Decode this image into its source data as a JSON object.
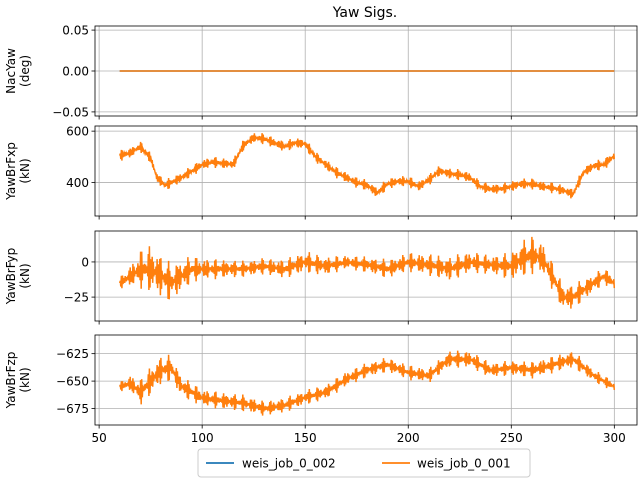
{
  "figure": {
    "title": "Yaw Sigs.",
    "legend_placement": "bottom-center",
    "legend": [
      {
        "label": "weis_job_0_002",
        "color": "#1f77b4"
      },
      {
        "label": "weis_job_0_001",
        "color": "#ff7f0e"
      }
    ]
  },
  "chart_data": [
    {
      "type": "line",
      "ylabel": [
        "NacYaw",
        "(deg)"
      ],
      "xlim": [
        48,
        311
      ],
      "ylim": [
        -0.055,
        0.055
      ],
      "yticks": [
        -0.05,
        0.0,
        0.05
      ],
      "ytick_labels": [
        "−0.05",
        "0.00",
        "0.05"
      ],
      "xticks": [
        50,
        100,
        150,
        200,
        250,
        300
      ],
      "xtick_labels": [],
      "grid": true,
      "series": [
        {
          "name": "weis_job_0_002",
          "color": "#1f77b4",
          "x_start": 60,
          "x_end": 300,
          "x": [
            60,
            300
          ],
          "y": [
            0,
            0
          ]
        },
        {
          "name": "weis_job_0_001",
          "color": "#ff7f0e",
          "x_start": 60,
          "x_end": 300,
          "x": [
            60,
            300
          ],
          "y": [
            0,
            0
          ]
        }
      ]
    },
    {
      "type": "line",
      "ylabel": [
        "YawBrFxp",
        "(kN)"
      ],
      "xlim": [
        48,
        311
      ],
      "ylim": [
        270,
        620
      ],
      "yticks": [
        400,
        600
      ],
      "ytick_labels": [
        "400",
        "600"
      ],
      "xticks": [
        50,
        100,
        150,
        200,
        250,
        300
      ],
      "xtick_labels": [],
      "grid": true,
      "series": [
        {
          "name": "weis_job_0_001",
          "color": "#ff7f0e",
          "x_start": 60,
          "x_end": 300,
          "oscillation_amplitude": 22,
          "oscillation_period": 1.2,
          "x": [
            60,
            65,
            70,
            75,
            78,
            82,
            85,
            90,
            95,
            100,
            105,
            110,
            115,
            120,
            125,
            130,
            135,
            140,
            145,
            150,
            155,
            160,
            165,
            170,
            175,
            180,
            185,
            190,
            195,
            200,
            205,
            210,
            215,
            220,
            225,
            230,
            235,
            240,
            245,
            250,
            255,
            260,
            265,
            270,
            275,
            280,
            285,
            290,
            295,
            300
          ],
          "y": [
            505,
            515,
            540,
            495,
            420,
            390,
            400,
            420,
            445,
            470,
            480,
            475,
            470,
            545,
            575,
            570,
            555,
            540,
            555,
            550,
            500,
            470,
            440,
            420,
            400,
            390,
            360,
            395,
            405,
            405,
            385,
            410,
            445,
            435,
            430,
            420,
            385,
            375,
            375,
            385,
            395,
            395,
            385,
            380,
            370,
            355,
            440,
            465,
            470,
            505
          ]
        }
      ]
    },
    {
      "type": "line",
      "ylabel": [
        "YawBrFyp",
        "(kN)"
      ],
      "xlim": [
        48,
        311
      ],
      "ylim": [
        -42,
        22
      ],
      "yticks": [
        -25,
        0
      ],
      "ytick_labels": [
        "−25",
        "0"
      ],
      "xticks": [
        50,
        100,
        150,
        200,
        250,
        300
      ],
      "xtick_labels": [],
      "grid": true,
      "series": [
        {
          "name": "weis_job_0_001",
          "color": "#ff7f0e",
          "x_start": 60,
          "x_end": 300,
          "x": [
            60,
            65,
            70,
            75,
            80,
            85,
            90,
            95,
            100,
            110,
            120,
            130,
            140,
            150,
            160,
            170,
            180,
            190,
            200,
            210,
            220,
            230,
            240,
            250,
            255,
            260,
            265,
            270,
            275,
            280,
            285,
            290,
            295,
            300
          ],
          "y": [
            -15,
            -10,
            -5,
            -5,
            -10,
            -15,
            -10,
            -5,
            -5,
            -5,
            -5,
            -3,
            -5,
            0,
            -3,
            0,
            -2,
            -5,
            0,
            -2,
            -5,
            0,
            -2,
            -3,
            2,
            5,
            3,
            -10,
            -25,
            -25,
            -20,
            -15,
            -10,
            -15
          ],
          "amplitude": [
            4,
            8,
            14,
            18,
            16,
            14,
            12,
            10,
            8,
            7,
            6,
            6,
            7,
            8,
            7,
            5,
            6,
            7,
            7,
            8,
            9,
            8,
            7,
            10,
            14,
            14,
            12,
            10,
            10,
            9,
            8,
            7,
            6,
            6
          ]
        }
      ]
    },
    {
      "type": "line",
      "ylabel": [
        "YawBrFzp",
        "(kN)"
      ],
      "xlim": [
        48,
        311
      ],
      "ylim": [
        -690,
        -608
      ],
      "yticks": [
        -675,
        -650,
        -625
      ],
      "ytick_labels": [
        "−675",
        "−650",
        "−625"
      ],
      "xticks": [
        50,
        100,
        150,
        200,
        250,
        300
      ],
      "xtick_labels": [
        "50",
        "100",
        "150",
        "200",
        "250",
        "300"
      ],
      "grid": true,
      "series": [
        {
          "name": "weis_job_0_001",
          "color": "#ff7f0e",
          "x_start": 60,
          "x_end": 300,
          "x": [
            60,
            65,
            70,
            75,
            80,
            85,
            90,
            95,
            100,
            110,
            120,
            130,
            140,
            150,
            160,
            170,
            180,
            190,
            200,
            210,
            220,
            230,
            240,
            250,
            260,
            270,
            280,
            290,
            300
          ],
          "y": [
            -655,
            -652,
            -660,
            -650,
            -640,
            -638,
            -655,
            -660,
            -665,
            -668,
            -670,
            -675,
            -672,
            -665,
            -660,
            -648,
            -640,
            -635,
            -642,
            -645,
            -630,
            -630,
            -640,
            -638,
            -640,
            -635,
            -630,
            -645,
            -655
          ],
          "amplitude": [
            4,
            8,
            12,
            14,
            14,
            12,
            10,
            9,
            8,
            8,
            8,
            7,
            7,
            7,
            7,
            7,
            7,
            7,
            7,
            7,
            8,
            8,
            7,
            7,
            8,
            8,
            8,
            6,
            5
          ]
        }
      ]
    }
  ]
}
